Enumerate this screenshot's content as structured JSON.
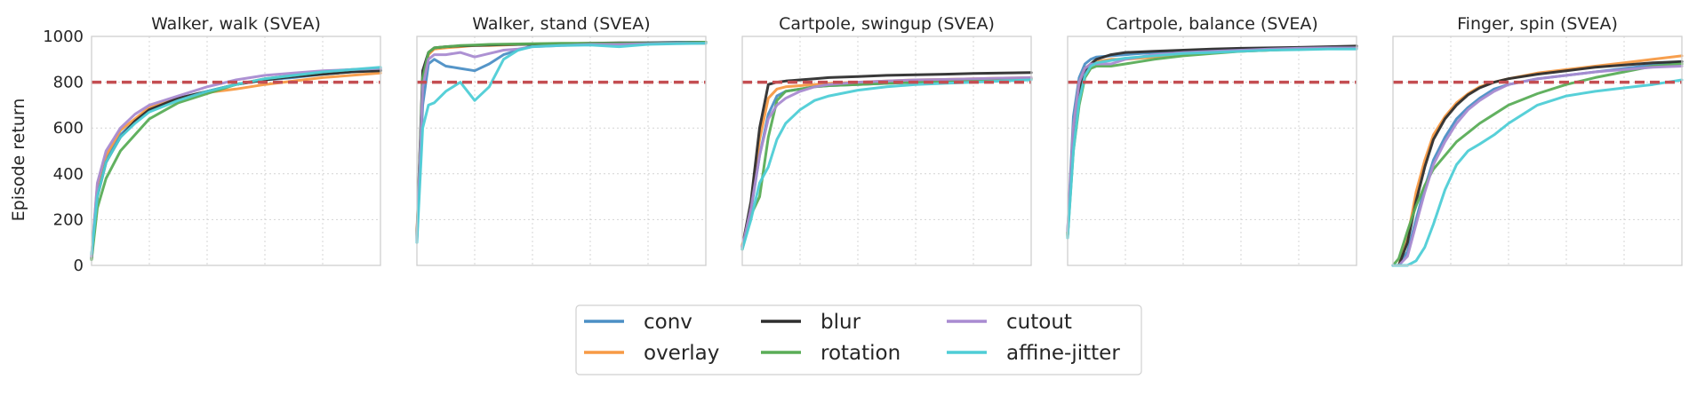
{
  "chart_data": {
    "type": "line",
    "ylabel": "Episode return",
    "ylim": [
      0,
      1000
    ],
    "yticks": [
      0,
      200,
      400,
      600,
      800,
      1000
    ],
    "ytick_labels": [
      "0",
      "200",
      "400",
      "600",
      "800",
      "1000"
    ],
    "grid": true,
    "legend_placement": "bottom-center",
    "threshold": 800,
    "threshold_color": "#c44e52",
    "series_meta": [
      {
        "name": "conv",
        "color": "#4c8fc5"
      },
      {
        "name": "overlay",
        "color": "#f79a45"
      },
      {
        "name": "blur",
        "color": "#2e2e2e"
      },
      {
        "name": "rotation",
        "color": "#5aad57"
      },
      {
        "name": "cutout",
        "color": "#a98bd1"
      },
      {
        "name": "affine-jitter",
        "color": "#4ecdd6"
      }
    ],
    "panels": [
      {
        "title": "Walker, walk (SVEA)",
        "x": [
          0,
          0.02,
          0.05,
          0.1,
          0.15,
          0.2,
          0.3,
          0.4,
          0.5,
          0.6,
          0.7,
          0.8,
          0.9,
          1.0
        ],
        "series": [
          {
            "name": "conv",
            "values": [
              30,
              330,
              470,
              570,
              630,
              680,
              730,
              760,
              790,
              810,
              820,
              835,
              845,
              855
            ]
          },
          {
            "name": "overlay",
            "values": [
              40,
              350,
              480,
              590,
              640,
              690,
              730,
              755,
              770,
              790,
              805,
              820,
              830,
              840
            ]
          },
          {
            "name": "blur",
            "values": [
              30,
              300,
              450,
              560,
              630,
              680,
              730,
              760,
              790,
              810,
              825,
              835,
              845,
              850
            ]
          },
          {
            "name": "rotation",
            "values": [
              25,
              250,
              380,
              500,
              570,
              640,
              710,
              750,
              790,
              815,
              830,
              845,
              855,
              860
            ]
          },
          {
            "name": "cutout",
            "values": [
              40,
              360,
              500,
              600,
              660,
              700,
              740,
              780,
              810,
              830,
              840,
              850,
              855,
              860
            ]
          },
          {
            "name": "affine-jitter",
            "values": [
              50,
              300,
              450,
              560,
              620,
              670,
              720,
              760,
              790,
              815,
              830,
              845,
              855,
              865
            ]
          }
        ]
      },
      {
        "title": "Walker, stand (SVEA)",
        "x": [
          0,
          0.02,
          0.04,
          0.06,
          0.1,
          0.15,
          0.2,
          0.25,
          0.3,
          0.35,
          0.4,
          0.5,
          0.6,
          0.7,
          0.8,
          0.9,
          1.0
        ],
        "series": [
          {
            "name": "conv",
            "values": [
              120,
              700,
              880,
              900,
              870,
              860,
              850,
              880,
              920,
              940,
              960,
              965,
              970,
              970,
              972,
              975,
              975
            ]
          },
          {
            "name": "overlay",
            "values": [
              150,
              800,
              920,
              945,
              950,
              955,
              960,
              960,
              962,
              965,
              967,
              968,
              970,
              970,
              970,
              970,
              970
            ]
          },
          {
            "name": "blur",
            "values": [
              130,
              850,
              930,
              950,
              955,
              958,
              960,
              962,
              964,
              965,
              966,
              968,
              970,
              972,
              972,
              973,
              975
            ]
          },
          {
            "name": "rotation",
            "values": [
              120,
              820,
              930,
              950,
              955,
              960,
              962,
              965,
              966,
              967,
              968,
              970,
              970,
              970,
              970,
              972,
              975
            ]
          },
          {
            "name": "cutout",
            "values": [
              110,
              780,
              900,
              920,
              920,
              930,
              910,
              925,
              940,
              945,
              955,
              960,
              965,
              965,
              968,
              970,
              970
            ]
          },
          {
            "name": "affine-jitter",
            "values": [
              100,
              600,
              700,
              710,
              760,
              800,
              720,
              780,
              900,
              940,
              955,
              960,
              962,
              955,
              965,
              968,
              970
            ]
          }
        ]
      },
      {
        "title": "Cartpole, swingup (SVEA)",
        "x": [
          0,
          0.03,
          0.06,
          0.09,
          0.12,
          0.15,
          0.2,
          0.25,
          0.3,
          0.4,
          0.5,
          0.6,
          0.7,
          0.8,
          0.9,
          1.0
        ],
        "series": [
          {
            "name": "conv",
            "values": [
              80,
              240,
              480,
              660,
              740,
              760,
              770,
              780,
              785,
              790,
              795,
              800,
              805,
              810,
              815,
              815
            ]
          },
          {
            "name": "overlay",
            "values": [
              90,
              260,
              550,
              730,
              770,
              780,
              785,
              790,
              795,
              800,
              805,
              810,
              812,
              815,
              818,
              820
            ]
          },
          {
            "name": "blur",
            "values": [
              80,
              280,
              600,
              790,
              800,
              805,
              810,
              815,
              820,
              825,
              830,
              832,
              835,
              838,
              840,
              842
            ]
          },
          {
            "name": "rotation",
            "values": [
              70,
              220,
              300,
              560,
              720,
              760,
              770,
              780,
              785,
              790,
              795,
              800,
              805,
              810,
              812,
              815
            ]
          },
          {
            "name": "cutout",
            "values": [
              80,
              250,
              480,
              640,
              700,
              730,
              760,
              780,
              790,
              800,
              805,
              810,
              812,
              815,
              818,
              820
            ]
          },
          {
            "name": "affine-jitter",
            "values": [
              70,
              200,
              360,
              430,
              550,
              620,
              680,
              720,
              740,
              765,
              780,
              790,
              795,
              800,
              805,
              810
            ]
          }
        ]
      },
      {
        "title": "Cartpole, balance (SVEA)",
        "x": [
          0,
          0.02,
          0.04,
          0.06,
          0.08,
          0.1,
          0.15,
          0.2,
          0.3,
          0.4,
          0.5,
          0.6,
          0.7,
          0.8,
          0.9,
          1.0
        ],
        "series": [
          {
            "name": "conv",
            "values": [
              150,
              650,
              820,
              880,
              900,
              910,
              915,
              920,
              930,
              935,
              940,
              945,
              948,
              950,
              950,
              950
            ]
          },
          {
            "name": "overlay",
            "values": [
              140,
              600,
              800,
              860,
              880,
              890,
              900,
              900,
              910,
              920,
              930,
              935,
              940,
              945,
              948,
              950
            ]
          },
          {
            "name": "blur",
            "values": [
              130,
              550,
              750,
              850,
              880,
              900,
              920,
              930,
              935,
              940,
              945,
              948,
              950,
              952,
              955,
              958
            ]
          },
          {
            "name": "rotation",
            "values": [
              130,
              500,
              700,
              820,
              860,
              870,
              870,
              880,
              900,
              915,
              925,
              935,
              940,
              945,
              948,
              950
            ]
          },
          {
            "name": "cutout",
            "values": [
              150,
              600,
              800,
              860,
              880,
              880,
              880,
              900,
              920,
              930,
              935,
              940,
              945,
              948,
              950,
              950
            ]
          },
          {
            "name": "affine-jitter",
            "values": [
              120,
              500,
              720,
              830,
              870,
              885,
              895,
              905,
              915,
              925,
              930,
              935,
              940,
              942,
              945,
              945
            ]
          }
        ]
      },
      {
        "title": "Finger, spin (SVEA)",
        "x": [
          0,
          0.02,
          0.05,
          0.08,
          0.11,
          0.14,
          0.18,
          0.22,
          0.26,
          0.3,
          0.35,
          0.4,
          0.5,
          0.6,
          0.7,
          0.8,
          0.9,
          1.0
        ],
        "series": [
          {
            "name": "conv",
            "values": [
              0,
              0,
              60,
              200,
              340,
              460,
              560,
              640,
              690,
              730,
              770,
              790,
              815,
              830,
              845,
              860,
              875,
              890
            ]
          },
          {
            "name": "overlay",
            "values": [
              0,
              0,
              120,
              320,
              460,
              570,
              650,
              710,
              750,
              780,
              800,
              815,
              840,
              855,
              870,
              885,
              900,
              915
            ]
          },
          {
            "name": "blur",
            "values": [
              0,
              0,
              100,
              280,
              430,
              550,
              640,
              700,
              745,
              775,
              800,
              815,
              835,
              850,
              865,
              875,
              885,
              890
            ]
          },
          {
            "name": "rotation",
            "values": [
              0,
              30,
              150,
              260,
              350,
              420,
              480,
              540,
              580,
              620,
              660,
              700,
              750,
              790,
              820,
              845,
              870,
              880
            ]
          },
          {
            "name": "cutout",
            "values": [
              0,
              0,
              40,
              180,
              320,
              440,
              540,
              620,
              680,
              720,
              760,
              790,
              815,
              830,
              845,
              855,
              865,
              870
            ]
          },
          {
            "name": "affine-jitter",
            "values": [
              0,
              0,
              0,
              20,
              80,
              180,
              330,
              440,
              500,
              530,
              570,
              620,
              700,
              740,
              760,
              775,
              790,
              810
            ]
          }
        ]
      }
    ]
  }
}
